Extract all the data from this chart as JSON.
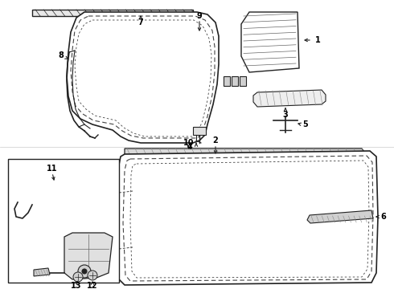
{
  "background_color": "#ffffff",
  "line_color": "#222222",
  "dash_color": "#444444",
  "fig_width": 4.9,
  "fig_height": 3.6,
  "dpi": 100
}
